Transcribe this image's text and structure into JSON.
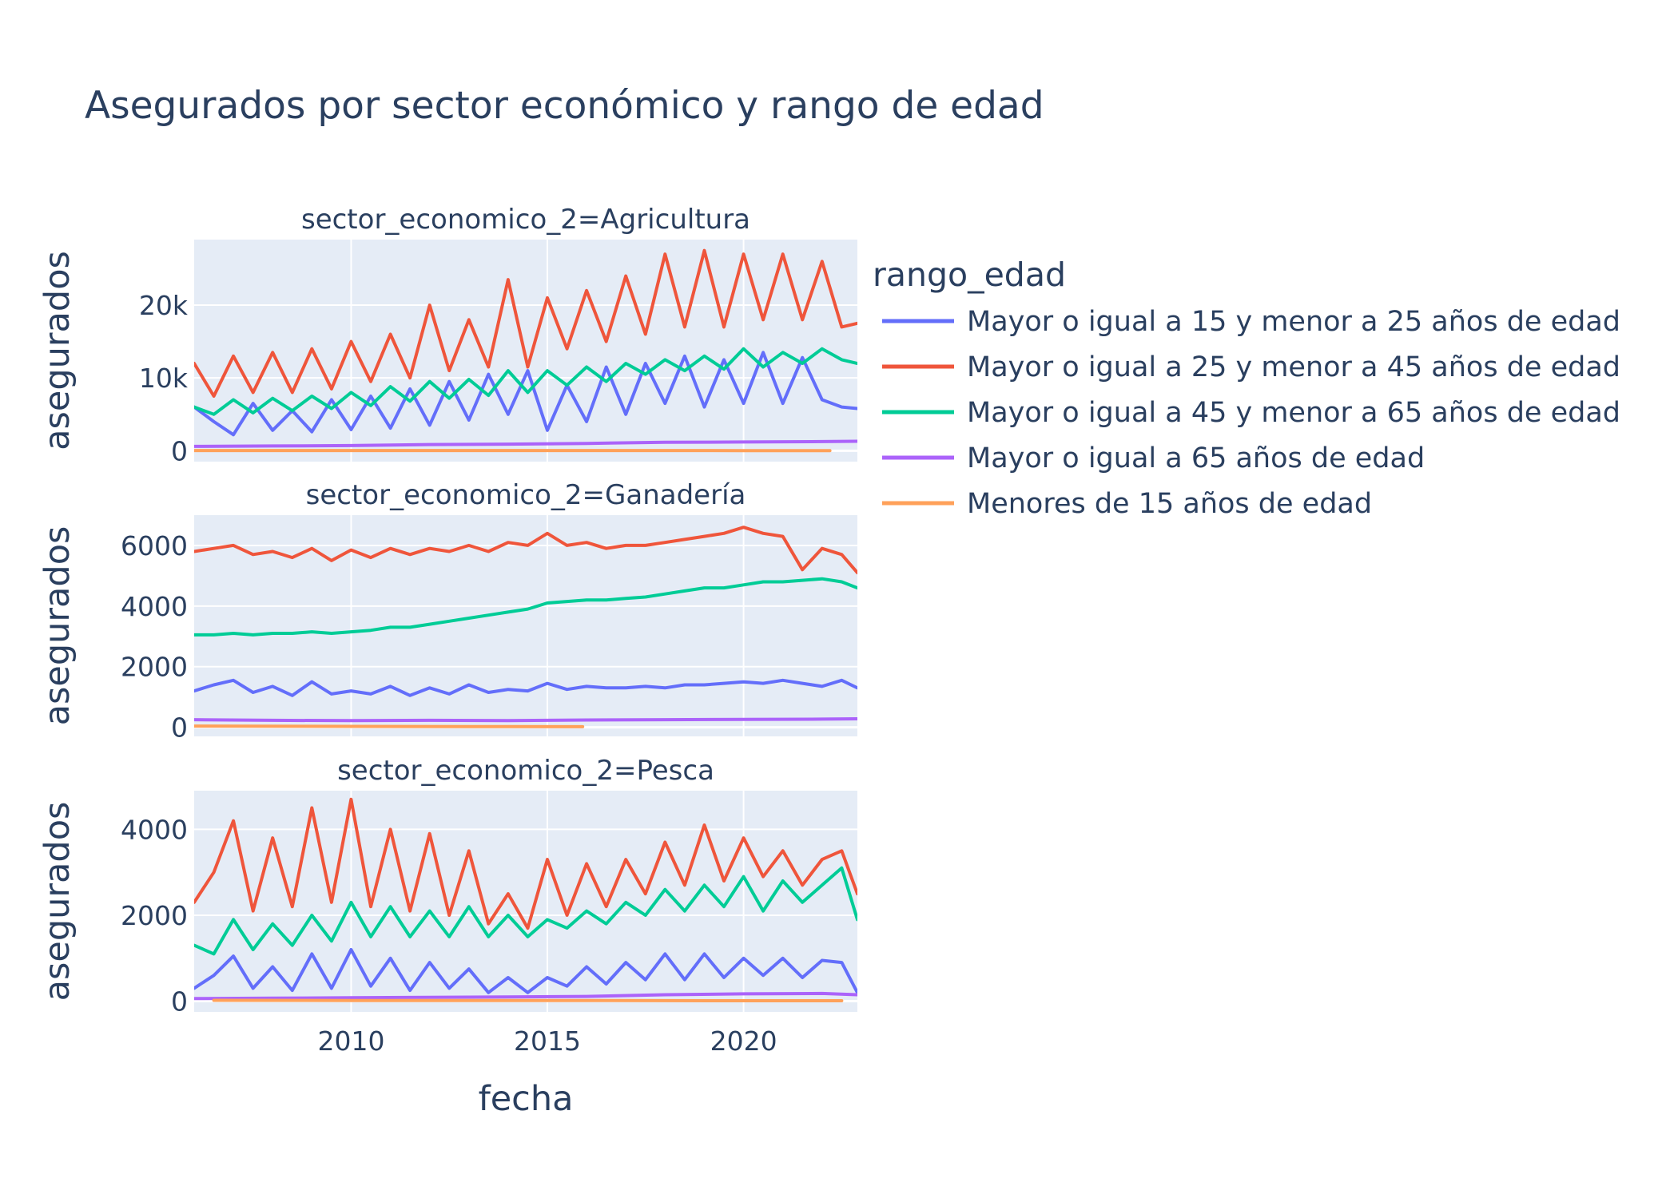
{
  "title": "Asegurados por sector económico y rango de edad",
  "colors": {
    "plot_bg": "#e5ecf6",
    "grid": "#ffffff",
    "text": "#2a3f5f"
  },
  "chart_data": {
    "type": "line",
    "xlabel": "fecha",
    "x_ticks": [
      "2010",
      "2015",
      "2020"
    ],
    "x_range": [
      2006.0,
      2022.9
    ],
    "legend": {
      "title": "rango_edad",
      "placement": "right",
      "items": [
        {
          "name": "Mayor o igual a 15 y menor a 25 años de edad",
          "color": "#636efa"
        },
        {
          "name": "Mayor o igual a 25 y menor a 45 años de edad",
          "color": "#ef553b"
        },
        {
          "name": "Mayor o igual a 45 y menor a 65 años de edad",
          "color": "#00cc96"
        },
        {
          "name": "Mayor o igual a 65 años de edad",
          "color": "#ab63fa"
        },
        {
          "name": "Menores de 15 años de edad",
          "color": "#ffa15a"
        }
      ]
    },
    "panels": [
      {
        "title": "sector_economico_2=Agricultura",
        "ylabel": "asegurados",
        "ylim": [
          -1500,
          29000
        ],
        "y_ticks": [
          0,
          10000,
          20000
        ],
        "y_tick_labels": [
          "0",
          "10k",
          "20k"
        ],
        "series": [
          {
            "name": "Mayor o igual a 15 y menor a 25 años de edad",
            "color": "#636efa",
            "x": [
              2006.0,
              2006.5,
              2007.0,
              2007.5,
              2008.0,
              2008.5,
              2009.0,
              2009.5,
              2010.0,
              2010.5,
              2011.0,
              2011.5,
              2012.0,
              2012.5,
              2013.0,
              2013.5,
              2014.0,
              2014.5,
              2015.0,
              2015.5,
              2016.0,
              2016.5,
              2017.0,
              2017.5,
              2018.0,
              2018.5,
              2019.0,
              2019.5,
              2020.0,
              2020.5,
              2021.0,
              2021.5,
              2022.0,
              2022.5,
              2022.9
            ],
            "values": [
              6000,
              4000,
              2200,
              6500,
              2800,
              5500,
              2600,
              7000,
              2900,
              7500,
              3100,
              8500,
              3500,
              9500,
              4200,
              10500,
              5000,
              11000,
              2800,
              9000,
              4000,
              11500,
              5000,
              12000,
              6500,
              13000,
              6000,
              12500,
              6500,
              13500,
              6500,
              12800,
              7000,
              6000,
              5800
            ]
          },
          {
            "name": "Mayor o igual a 25 y menor a 45 años de edad",
            "color": "#ef553b",
            "x": [
              2006.0,
              2006.5,
              2007.0,
              2007.5,
              2008.0,
              2008.5,
              2009.0,
              2009.5,
              2010.0,
              2010.5,
              2011.0,
              2011.5,
              2012.0,
              2012.5,
              2013.0,
              2013.5,
              2014.0,
              2014.5,
              2015.0,
              2015.5,
              2016.0,
              2016.5,
              2017.0,
              2017.5,
              2018.0,
              2018.5,
              2019.0,
              2019.5,
              2020.0,
              2020.5,
              2021.0,
              2021.5,
              2022.0,
              2022.5,
              2022.9
            ],
            "values": [
              12000,
              7500,
              13000,
              8000,
              13500,
              8000,
              14000,
              8500,
              15000,
              9500,
              16000,
              10000,
              20000,
              11000,
              18000,
              11500,
              23500,
              11500,
              21000,
              14000,
              22000,
              15000,
              24000,
              16000,
              27000,
              17000,
              27500,
              17000,
              27000,
              18000,
              27000,
              18000,
              26000,
              17000,
              17500
            ]
          },
          {
            "name": "Mayor o igual a 45 y menor a 65 años de edad",
            "color": "#00cc96",
            "x": [
              2006.0,
              2006.5,
              2007.0,
              2007.5,
              2008.0,
              2008.5,
              2009.0,
              2009.5,
              2010.0,
              2010.5,
              2011.0,
              2011.5,
              2012.0,
              2012.5,
              2013.0,
              2013.5,
              2014.0,
              2014.5,
              2015.0,
              2015.5,
              2016.0,
              2016.5,
              2017.0,
              2017.5,
              2018.0,
              2018.5,
              2019.0,
              2019.5,
              2020.0,
              2020.5,
              2021.0,
              2021.5,
              2022.0,
              2022.5,
              2022.9
            ],
            "values": [
              6000,
              5000,
              7000,
              5200,
              7200,
              5500,
              7500,
              5800,
              8000,
              6200,
              8800,
              6800,
              9500,
              7200,
              9800,
              7600,
              11000,
              8000,
              11000,
              9000,
              11500,
              9500,
              12000,
              10500,
              12500,
              11000,
              13000,
              11200,
              14000,
              11500,
              13500,
              12000,
              14000,
              12500,
              12000
            ]
          },
          {
            "name": "Mayor o igual a 65 años de edad",
            "color": "#ab63fa",
            "x": [
              2006.0,
              2008.0,
              2010.0,
              2012.0,
              2014.0,
              2016.0,
              2018.0,
              2020.0,
              2022.0,
              2022.9
            ],
            "values": [
              600,
              650,
              700,
              850,
              900,
              1000,
              1150,
              1200,
              1250,
              1300
            ]
          },
          {
            "name": "Menores de 15 años de edad",
            "color": "#ffa15a",
            "x": [
              2006.0,
              2010.0,
              2015.0,
              2020.0,
              2022.2
            ],
            "values": [
              30,
              25,
              20,
              15,
              10
            ]
          }
        ]
      },
      {
        "title": "sector_economico_2=Ganadería",
        "ylabel": "asegurados",
        "ylim": [
          -300,
          7000
        ],
        "y_ticks": [
          0,
          2000,
          4000,
          6000
        ],
        "y_tick_labels": [
          "0",
          "2000",
          "4000",
          "6000"
        ],
        "series": [
          {
            "name": "Mayor o igual a 15 y menor a 25 años de edad",
            "color": "#636efa",
            "x": [
              2006.0,
              2006.5,
              2007.0,
              2007.5,
              2008.0,
              2008.5,
              2009.0,
              2009.5,
              2010.0,
              2010.5,
              2011.0,
              2011.5,
              2012.0,
              2012.5,
              2013.0,
              2013.5,
              2014.0,
              2014.5,
              2015.0,
              2015.5,
              2016.0,
              2016.5,
              2017.0,
              2017.5,
              2018.0,
              2018.5,
              2019.0,
              2019.5,
              2020.0,
              2020.5,
              2021.0,
              2021.5,
              2022.0,
              2022.5,
              2022.9
            ],
            "values": [
              1200,
              1400,
              1550,
              1150,
              1350,
              1050,
              1500,
              1100,
              1200,
              1100,
              1350,
              1050,
              1300,
              1100,
              1400,
              1150,
              1250,
              1200,
              1450,
              1250,
              1350,
              1300,
              1300,
              1350,
              1300,
              1400,
              1400,
              1450,
              1500,
              1450,
              1550,
              1450,
              1350,
              1550,
              1300
            ]
          },
          {
            "name": "Mayor o igual a 25 y menor a 45 años de edad",
            "color": "#ef553b",
            "x": [
              2006.0,
              2006.5,
              2007.0,
              2007.5,
              2008.0,
              2008.5,
              2009.0,
              2009.5,
              2010.0,
              2010.5,
              2011.0,
              2011.5,
              2012.0,
              2012.5,
              2013.0,
              2013.5,
              2014.0,
              2014.5,
              2015.0,
              2015.5,
              2016.0,
              2016.5,
              2017.0,
              2017.5,
              2018.0,
              2018.5,
              2019.0,
              2019.5,
              2020.0,
              2020.5,
              2021.0,
              2021.5,
              2022.0,
              2022.5,
              2022.9
            ],
            "values": [
              5800,
              5900,
              6000,
              5700,
              5800,
              5600,
              5900,
              5500,
              5850,
              5600,
              5900,
              5700,
              5900,
              5800,
              6000,
              5800,
              6100,
              6000,
              6400,
              6000,
              6100,
              5900,
              6000,
              6000,
              6100,
              6200,
              6300,
              6400,
              6600,
              6400,
              6300,
              5200,
              5900,
              5700,
              5100
            ]
          },
          {
            "name": "Mayor o igual a 45 y menor a 65 años de edad",
            "color": "#00cc96",
            "x": [
              2006.0,
              2006.5,
              2007.0,
              2007.5,
              2008.0,
              2008.5,
              2009.0,
              2009.5,
              2010.0,
              2010.5,
              2011.0,
              2011.5,
              2012.0,
              2012.5,
              2013.0,
              2013.5,
              2014.0,
              2014.5,
              2015.0,
              2015.5,
              2016.0,
              2016.5,
              2017.0,
              2017.5,
              2018.0,
              2018.5,
              2019.0,
              2019.5,
              2020.0,
              2020.5,
              2021.0,
              2021.5,
              2022.0,
              2022.5,
              2022.9
            ],
            "values": [
              3050,
              3050,
              3100,
              3050,
              3100,
              3100,
              3150,
              3100,
              3150,
              3200,
              3300,
              3300,
              3400,
              3500,
              3600,
              3700,
              3800,
              3900,
              4100,
              4150,
              4200,
              4200,
              4250,
              4300,
              4400,
              4500,
              4600,
              4600,
              4700,
              4800,
              4800,
              4850,
              4900,
              4800,
              4600
            ]
          },
          {
            "name": "Mayor o igual a 65 años de edad",
            "color": "#ab63fa",
            "x": [
              2006.0,
              2008.0,
              2010.0,
              2012.0,
              2014.0,
              2016.0,
              2018.0,
              2020.0,
              2022.0,
              2022.9
            ],
            "values": [
              250,
              230,
              220,
              230,
              220,
              240,
              250,
              260,
              270,
              280
            ]
          },
          {
            "name": "Menores de 15 años de edad",
            "color": "#ffa15a",
            "x": [
              2006.0,
              2010.0,
              2013.0,
              2015.9
            ],
            "values": [
              40,
              30,
              25,
              20
            ]
          }
        ]
      },
      {
        "title": "sector_economico_2=Pesca",
        "ylabel": "asegurados",
        "ylim": [
          -250,
          4900
        ],
        "y_ticks": [
          0,
          2000,
          4000
        ],
        "y_tick_labels": [
          "0",
          "2000",
          "4000"
        ],
        "series": [
          {
            "name": "Mayor o igual a 15 y menor a 25 años de edad",
            "color": "#636efa",
            "x": [
              2006.0,
              2006.5,
              2007.0,
              2007.5,
              2008.0,
              2008.5,
              2009.0,
              2009.5,
              2010.0,
              2010.5,
              2011.0,
              2011.5,
              2012.0,
              2012.5,
              2013.0,
              2013.5,
              2014.0,
              2014.5,
              2015.0,
              2015.5,
              2016.0,
              2016.5,
              2017.0,
              2017.5,
              2018.0,
              2018.5,
              2019.0,
              2019.5,
              2020.0,
              2020.5,
              2021.0,
              2021.5,
              2022.0,
              2022.5,
              2022.9
            ],
            "values": [
              300,
              600,
              1050,
              300,
              800,
              250,
              1100,
              300,
              1200,
              350,
              1000,
              250,
              900,
              300,
              750,
              200,
              550,
              200,
              550,
              350,
              800,
              400,
              900,
              500,
              1100,
              500,
              1100,
              550,
              1000,
              600,
              1000,
              550,
              950,
              900,
              200
            ]
          },
          {
            "name": "Mayor o igual a 25 y menor a 45 años de edad",
            "color": "#ef553b",
            "x": [
              2006.0,
              2006.5,
              2007.0,
              2007.5,
              2008.0,
              2008.5,
              2009.0,
              2009.5,
              2010.0,
              2010.5,
              2011.0,
              2011.5,
              2012.0,
              2012.5,
              2013.0,
              2013.5,
              2014.0,
              2014.5,
              2015.0,
              2015.5,
              2016.0,
              2016.5,
              2017.0,
              2017.5,
              2018.0,
              2018.5,
              2019.0,
              2019.5,
              2020.0,
              2020.5,
              2021.0,
              2021.5,
              2022.0,
              2022.5,
              2022.9
            ],
            "values": [
              2300,
              3000,
              4200,
              2100,
              3800,
              2200,
              4500,
              2300,
              4700,
              2200,
              4000,
              2100,
              3900,
              2000,
              3500,
              1800,
              2500,
              1700,
              3300,
              2000,
              3200,
              2200,
              3300,
              2500,
              3700,
              2700,
              4100,
              2800,
              3800,
              2900,
              3500,
              2700,
              3300,
              3500,
              2500
            ]
          },
          {
            "name": "Mayor o igual a 45 y menor a 65 años de edad",
            "color": "#00cc96",
            "x": [
              2006.0,
              2006.5,
              2007.0,
              2007.5,
              2008.0,
              2008.5,
              2009.0,
              2009.5,
              2010.0,
              2010.5,
              2011.0,
              2011.5,
              2012.0,
              2012.5,
              2013.0,
              2013.5,
              2014.0,
              2014.5,
              2015.0,
              2015.5,
              2016.0,
              2016.5,
              2017.0,
              2017.5,
              2018.0,
              2018.5,
              2019.0,
              2019.5,
              2020.0,
              2020.5,
              2021.0,
              2021.5,
              2022.0,
              2022.5,
              2022.9
            ],
            "values": [
              1300,
              1100,
              1900,
              1200,
              1800,
              1300,
              2000,
              1400,
              2300,
              1500,
              2200,
              1500,
              2100,
              1500,
              2200,
              1500,
              2000,
              1500,
              1900,
              1700,
              2100,
              1800,
              2300,
              2000,
              2600,
              2100,
              2700,
              2200,
              2900,
              2100,
              2800,
              2300,
              2700,
              3100,
              1900
            ]
          },
          {
            "name": "Mayor o igual a 65 años de edad",
            "color": "#ab63fa",
            "x": [
              2006.0,
              2008.0,
              2010.0,
              2012.0,
              2014.0,
              2016.0,
              2018.0,
              2020.0,
              2022.0,
              2022.9
            ],
            "values": [
              60,
              70,
              80,
              90,
              100,
              110,
              150,
              170,
              180,
              150
            ]
          },
          {
            "name": "Menores de 15 años de edad",
            "color": "#ffa15a",
            "x": [
              2006.5,
              2010.0,
              2015.0,
              2020.0,
              2022.5
            ],
            "values": [
              20,
              15,
              15,
              10,
              10
            ]
          }
        ]
      }
    ]
  }
}
